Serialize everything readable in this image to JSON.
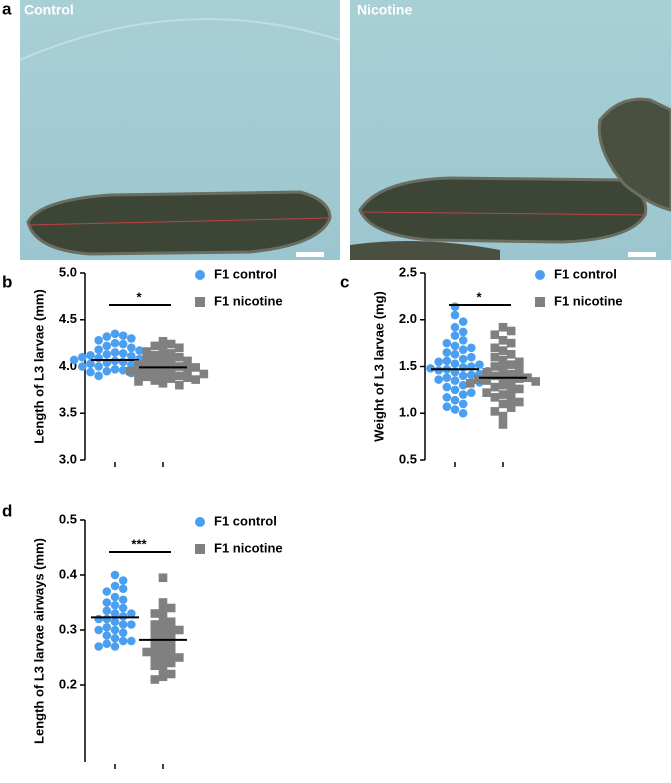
{
  "figure": {
    "panel_labels": [
      "a",
      "b",
      "c",
      "d"
    ],
    "image_labels": [
      "Control",
      "Nicotine"
    ]
  },
  "chart_data": [
    {
      "type": "scatter",
      "ylabel": "Length of L3 larvae (mm)",
      "ylim": [
        3.0,
        5.0
      ],
      "yticks": [
        {
          "value": 3,
          "label": "3.0"
        },
        3.5,
        {
          "value": 4,
          "label": "4.0"
        },
        4.5,
        {
          "value": 5,
          "label": "5.0"
        }
      ],
      "annotation": "*",
      "series": [
        {
          "name": "F1 control",
          "color": "#4b9ff0",
          "marker": "circle",
          "mean": 4.07,
          "values": [
            4.35,
            4.33,
            4.32,
            4.3,
            4.28,
            4.25,
            4.24,
            4.22,
            4.2,
            4.18,
            4.17,
            4.15,
            4.14,
            4.13,
            4.12,
            4.11,
            4.1,
            4.1,
            4.09,
            4.08,
            4.08,
            4.07,
            4.06,
            4.05,
            4.05,
            4.04,
            4.03,
            4.02,
            4.01,
            4.0,
            4.0,
            3.99,
            3.98,
            3.97,
            3.96,
            3.95,
            3.94,
            3.93,
            3.92,
            3.9
          ]
        },
        {
          "name": "F1 nicotine",
          "color": "#808080",
          "marker": "square",
          "mean": 3.99,
          "values": [
            4.27,
            4.24,
            4.22,
            4.2,
            4.18,
            4.16,
            4.14,
            4.12,
            4.1,
            4.09,
            4.07,
            4.06,
            4.05,
            4.03,
            4.02,
            4.0,
            4.0,
            3.99,
            3.98,
            3.97,
            3.96,
            3.95,
            3.94,
            3.93,
            3.92,
            3.91,
            3.9,
            3.89,
            3.88,
            3.87,
            3.86,
            3.85,
            3.84,
            3.82,
            3.8
          ]
        }
      ]
    },
    {
      "type": "scatter",
      "ylabel": "Weight of L3 larvae (mg)",
      "ylim": [
        0.5,
        2.5
      ],
      "yticks": [
        0.5,
        {
          "value": 1,
          "label": "1.0"
        },
        1.5,
        {
          "value": 2,
          "label": "2.0"
        },
        2.5
      ],
      "annotation": "*",
      "series": [
        {
          "name": "F1 control",
          "color": "#4b9ff0",
          "marker": "circle",
          "mean": 1.47,
          "values": [
            2.14,
            2.05,
            1.98,
            1.92,
            1.87,
            1.83,
            1.78,
            1.75,
            1.72,
            1.7,
            1.68,
            1.65,
            1.63,
            1.6,
            1.58,
            1.56,
            1.55,
            1.53,
            1.52,
            1.5,
            1.49,
            1.48,
            1.47,
            1.46,
            1.45,
            1.44,
            1.42,
            1.41,
            1.4,
            1.38,
            1.36,
            1.35,
            1.33,
            1.3,
            1.28,
            1.25,
            1.22,
            1.2,
            1.17,
            1.14,
            1.1,
            1.07,
            1.04,
            1.0
          ]
        },
        {
          "name": "F1 nicotine",
          "color": "#808080",
          "marker": "square",
          "mean": 1.38,
          "values": [
            1.92,
            1.88,
            1.84,
            1.78,
            1.75,
            1.7,
            1.67,
            1.63,
            1.6,
            1.57,
            1.55,
            1.52,
            1.5,
            1.48,
            1.46,
            1.44,
            1.42,
            1.4,
            1.39,
            1.38,
            1.37,
            1.36,
            1.35,
            1.34,
            1.33,
            1.32,
            1.3,
            1.28,
            1.26,
            1.24,
            1.22,
            1.2,
            1.17,
            1.15,
            1.12,
            1.1,
            1.06,
            1.02,
            0.97,
            0.88
          ]
        }
      ]
    },
    {
      "type": "scatter",
      "ylabel": "Length of L3 larvae airways (mm)",
      "ylim": [
        0.06,
        0.5
      ],
      "yticks": [
        0.2,
        0.3,
        0.4,
        0.5
      ],
      "annotation": "***",
      "series": [
        {
          "name": "F1 control",
          "color": "#4b9ff0",
          "marker": "circle",
          "mean": 0.323,
          "values": [
            0.4,
            0.39,
            0.38,
            0.375,
            0.37,
            0.36,
            0.355,
            0.35,
            0.345,
            0.34,
            0.335,
            0.33,
            0.33,
            0.325,
            0.32,
            0.32,
            0.315,
            0.31,
            0.31,
            0.305,
            0.3,
            0.3,
            0.295,
            0.29,
            0.285,
            0.28,
            0.28,
            0.275,
            0.27,
            0.27
          ]
        },
        {
          "name": "F1 nicotine",
          "color": "#808080",
          "marker": "square",
          "mean": 0.282,
          "values": [
            0.395,
            0.35,
            0.34,
            0.335,
            0.33,
            0.32,
            0.315,
            0.31,
            0.305,
            0.3,
            0.295,
            0.29,
            0.285,
            0.28,
            0.275,
            0.27,
            0.265,
            0.26,
            0.255,
            0.25,
            0.245,
            0.24,
            0.235,
            0.23,
            0.22,
            0.215,
            0.21,
            0.25,
            0.26,
            0.3
          ]
        }
      ]
    }
  ]
}
